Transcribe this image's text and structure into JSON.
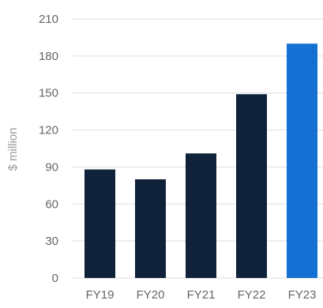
{
  "chart_data": {
    "type": "bar",
    "categories": [
      "FY19",
      "FY20",
      "FY21",
      "FY22",
      "FY23"
    ],
    "values": [
      88,
      80,
      101,
      149,
      190
    ],
    "title": "",
    "xlabel": "",
    "ylabel": "$ million",
    "ylim": [
      0,
      210
    ],
    "yticks": [
      0,
      30,
      60,
      90,
      120,
      150,
      180,
      210
    ],
    "yticks_labels": [
      "0",
      "30",
      "60",
      "90",
      "120",
      "150",
      "180",
      "210"
    ],
    "grid": true,
    "legend": "none",
    "colors": {
      "bar": "#10213a",
      "highlight": "#1570d4",
      "grid": "#dedede",
      "tick_text": "#666666",
      "axis_title": "#999999"
    },
    "highlight_index": 4
  }
}
